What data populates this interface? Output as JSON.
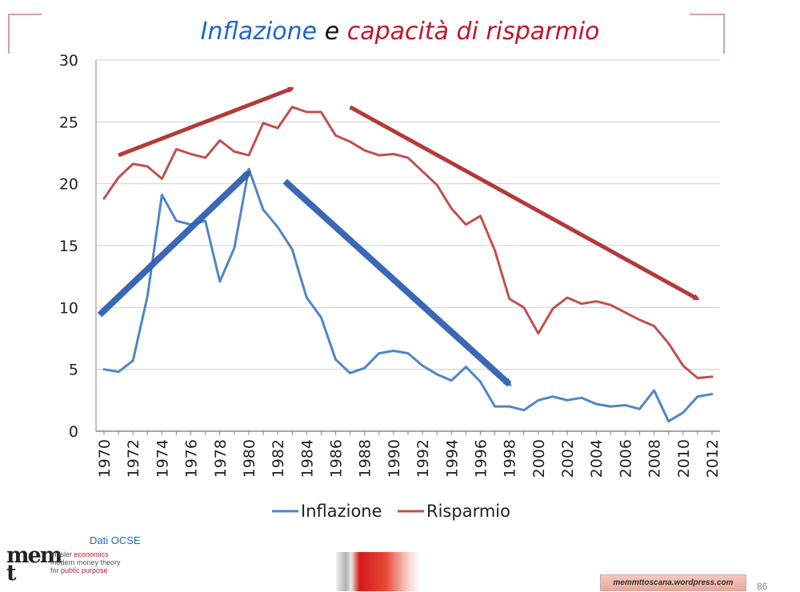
{
  "title": {
    "part1": "Inflazione",
    "part2": "e",
    "part3": "capacità di risparmio"
  },
  "colors": {
    "inflation": "#4f86c6",
    "savings": "#c0504d",
    "arrow_blue": "#3060b0",
    "arrow_red": "#b03030",
    "title_blue": "#1f66c2",
    "title_red": "#c0162c"
  },
  "chart_data": {
    "type": "line",
    "x": [
      1970,
      1971,
      1972,
      1973,
      1974,
      1975,
      1976,
      1977,
      1978,
      1979,
      1980,
      1981,
      1982,
      1983,
      1984,
      1985,
      1986,
      1987,
      1988,
      1989,
      1990,
      1991,
      1992,
      1993,
      1994,
      1995,
      1996,
      1997,
      1998,
      1999,
      2000,
      2001,
      2002,
      2003,
      2004,
      2005,
      2006,
      2007,
      2008,
      2009,
      2010,
      2011,
      2012
    ],
    "series": [
      {
        "name": "Inflazione",
        "color": "#4f86c6",
        "values": [
          5.0,
          4.8,
          5.7,
          10.9,
          19.1,
          17.0,
          16.7,
          17.0,
          12.1,
          14.8,
          21.2,
          17.9,
          16.5,
          14.7,
          10.8,
          9.2,
          5.8,
          4.7,
          5.1,
          6.3,
          6.5,
          6.3,
          5.3,
          4.6,
          4.1,
          5.2,
          4.0,
          2.0,
          2.0,
          1.7,
          2.5,
          2.8,
          2.5,
          2.7,
          2.2,
          2.0,
          2.1,
          1.8,
          3.3,
          0.8,
          1.5,
          2.8,
          3.0
        ]
      },
      {
        "name": "Risparmio",
        "color": "#c0504d",
        "values": [
          18.8,
          20.5,
          21.6,
          21.4,
          20.4,
          22.8,
          22.4,
          22.1,
          23.5,
          22.6,
          22.3,
          24.9,
          24.5,
          26.2,
          25.8,
          25.8,
          23.9,
          23.4,
          22.7,
          22.3,
          22.4,
          22.1,
          21.0,
          19.9,
          18.0,
          16.7,
          17.4,
          14.6,
          10.7,
          10.0,
          7.9,
          9.9,
          10.8,
          10.3,
          10.5,
          10.2,
          9.6,
          9.0,
          8.5,
          7.1,
          5.3,
          4.3,
          4.4
        ]
      }
    ],
    "ylim": [
      0,
      30
    ],
    "yticks": [
      "0",
      "5",
      "10",
      "15",
      "20",
      "25",
      "30"
    ],
    "xticks": [
      "1970",
      "1972",
      "1974",
      "1976",
      "1978",
      "1980",
      "1982",
      "1984",
      "1986",
      "1988",
      "1990",
      "1992",
      "1994",
      "1996",
      "1998",
      "2000",
      "2002",
      "2004",
      "2006",
      "2008",
      "2010",
      "2012"
    ],
    "grid": true,
    "legend_position": "bottom",
    "trend_arrows": [
      {
        "color": "red",
        "from": [
          1971,
          22.3
        ],
        "to": [
          1983,
          27.7
        ]
      },
      {
        "color": "red",
        "from": [
          1987,
          26.2
        ],
        "to": [
          2011,
          10.7
        ]
      },
      {
        "color": "blue",
        "from": [
          1969.7,
          9.4
        ],
        "to": [
          1980,
          20.9
        ]
      },
      {
        "color": "blue",
        "from": [
          1982.5,
          20.2
        ],
        "to": [
          1998,
          3.8
        ]
      }
    ]
  },
  "source_note": "Dati OCSE",
  "logo": {
    "mark": "mem t",
    "line1_prefix": "Mosler ",
    "line1_highlight": "economics",
    "line2": "modern money theory",
    "line3_prefix": "for ",
    "line3_highlight": "public purpose"
  },
  "site_label": "memmttoscana.wordpress.com",
  "page_number": "86"
}
